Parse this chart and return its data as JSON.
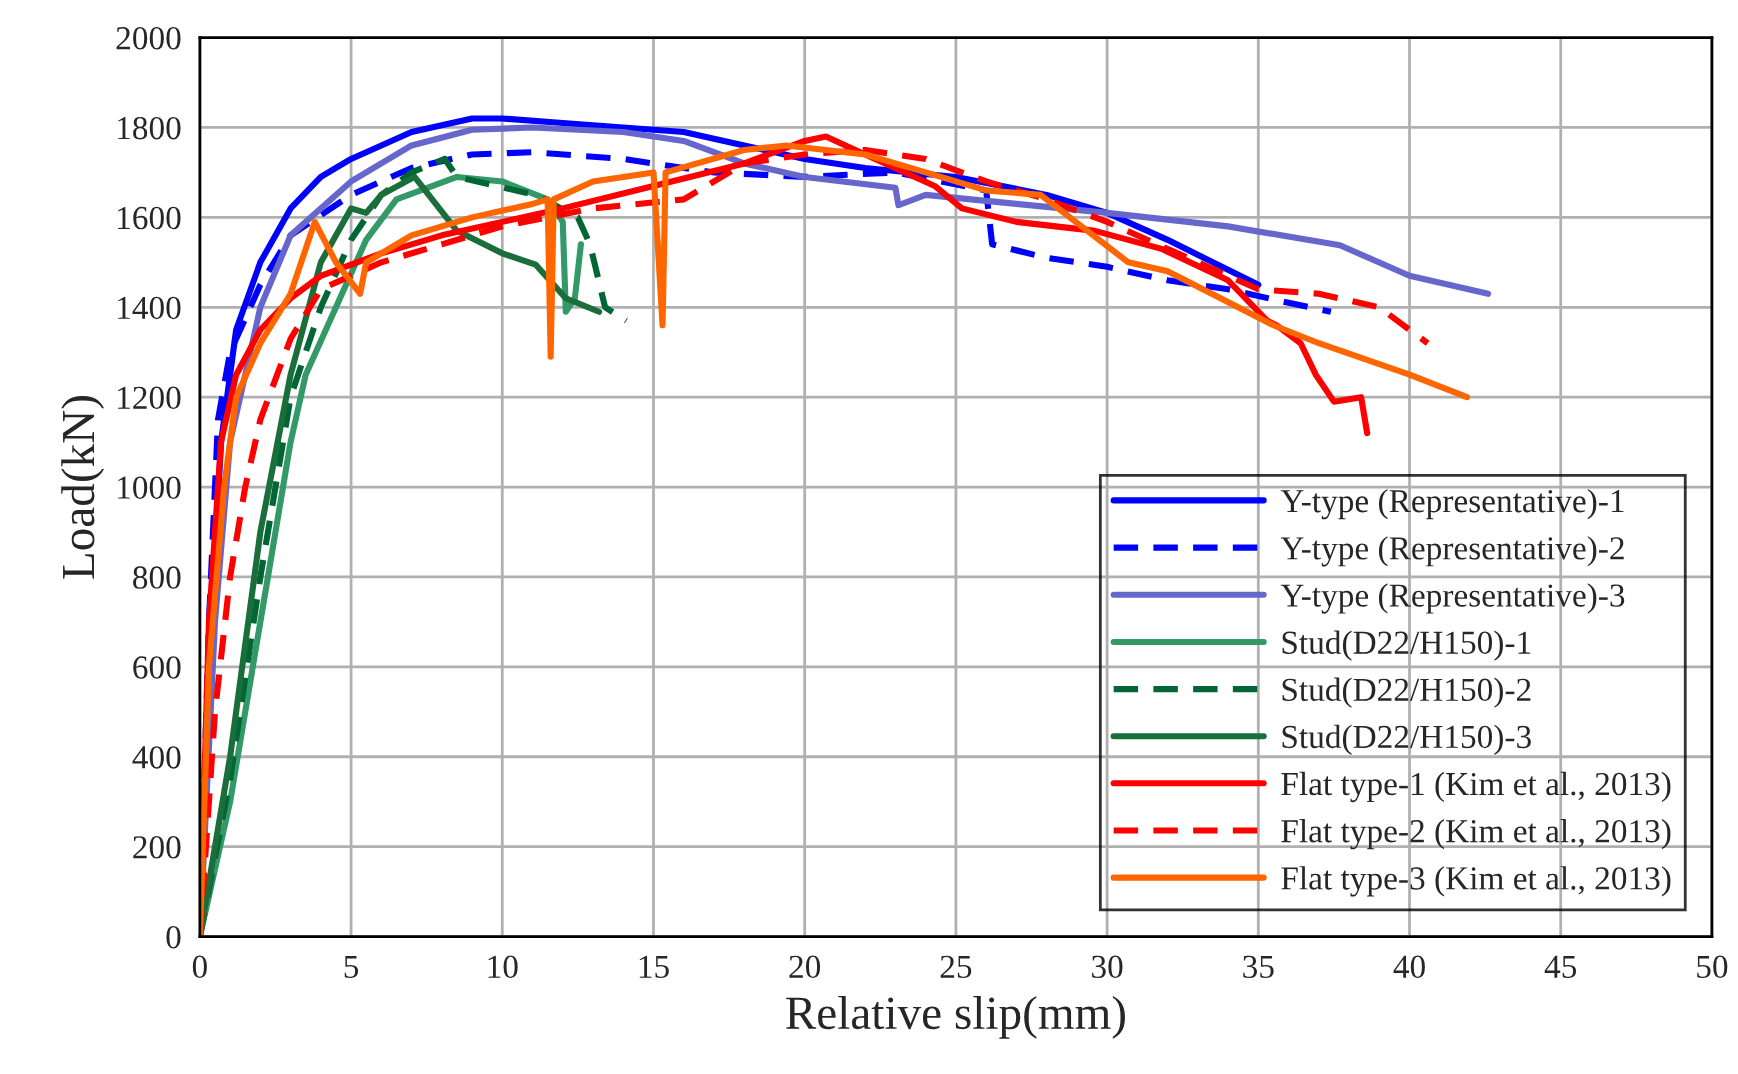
{
  "chart_data": {
    "type": "line",
    "xlabel": "Relative slip(mm)",
    "ylabel": "Load(kN)",
    "xlim": [
      0,
      50
    ],
    "xticks": [
      0,
      5,
      10,
      15,
      20,
      25,
      30,
      35,
      40,
      45,
      50
    ],
    "ylim": [
      0,
      2000
    ],
    "yticks": [
      0,
      200,
      400,
      600,
      800,
      1000,
      1200,
      1400,
      1600,
      1800,
      2000
    ],
    "grid": true,
    "legend": "bottom right",
    "marker": "none",
    "series": [
      {
        "name": "Y-type (Representative)-1",
        "color": "#0000ff",
        "line_style": "solid",
        "x": [
          0,
          0.3,
          0.7,
          1.2,
          2,
          3,
          4,
          5,
          7,
          9,
          10,
          12,
          14,
          16,
          18,
          20,
          22,
          25,
          28,
          30,
          32,
          35
        ],
        "values": [
          0,
          600,
          1100,
          1350,
          1500,
          1620,
          1690,
          1730,
          1790,
          1820,
          1820,
          1810,
          1800,
          1790,
          1760,
          1730,
          1710,
          1690,
          1650,
          1610,
          1550,
          1450
        ]
      },
      {
        "name": "Y-type (Representative)-2",
        "color": "#0000ff",
        "line_style": "dashed",
        "x": [
          0,
          0.3,
          0.6,
          1,
          2,
          3,
          5,
          7,
          9,
          11,
          14,
          17,
          20,
          23,
          26,
          26.2,
          28,
          30,
          32,
          34,
          36,
          37.4
        ],
        "values": [
          0,
          700,
          1150,
          1300,
          1450,
          1560,
          1650,
          1710,
          1740,
          1745,
          1730,
          1700,
          1690,
          1700,
          1660,
          1540,
          1510,
          1490,
          1460,
          1440,
          1410,
          1390
        ]
      },
      {
        "name": "Y-type (Representative)-3",
        "color": "#6666cc",
        "line_style": "solid",
        "x": [
          0,
          0.5,
          1,
          2,
          3,
          5,
          7,
          9,
          11,
          14,
          16,
          18,
          20,
          23,
          23.1,
          24,
          27,
          30,
          34,
          37.7,
          40,
          42.6
        ],
        "values": [
          0,
          700,
          1100,
          1400,
          1560,
          1680,
          1760,
          1795,
          1800,
          1790,
          1770,
          1720,
          1690,
          1666,
          1627,
          1650,
          1630,
          1610,
          1580,
          1538,
          1470,
          1430
        ]
      },
      {
        "name": "Stud(D22/H150)-1",
        "color": "#339966",
        "line_style": "solid",
        "x": [
          0,
          1,
          2,
          3,
          3.5,
          4.5,
          5.5,
          6.5,
          8.5,
          10,
          11.5,
          12,
          12.1,
          12.4,
          12.6
        ],
        "values": [
          0,
          300,
          700,
          1100,
          1250,
          1400,
          1550,
          1640,
          1690,
          1680,
          1640,
          1590,
          1390,
          1420,
          1540
        ]
      },
      {
        "name": "Stud(D22/H150)-2",
        "color": "#006633",
        "line_style": "dashed",
        "x": [
          0,
          1,
          2,
          3,
          4,
          5,
          6,
          7,
          8.1,
          8.5,
          11.1,
          12.5,
          12.9,
          13.4,
          14.1
        ],
        "values": [
          0,
          350,
          800,
          1200,
          1400,
          1550,
          1650,
          1700,
          1730,
          1690,
          1650,
          1600,
          1540,
          1400,
          1370
        ]
      },
      {
        "name": "Stud(D22/H150)-3",
        "color": "#1a6e3a",
        "line_style": "solid",
        "x": [
          0,
          1,
          2,
          3,
          4,
          5,
          5.5,
          6,
          7.1,
          8.5,
          10,
          11.1,
          12.1,
          13.2
        ],
        "values": [
          0,
          400,
          900,
          1250,
          1500,
          1620,
          1610,
          1650,
          1690,
          1570,
          1520,
          1495,
          1420,
          1390
        ]
      },
      {
        "name": "Flat type-1 (Kim et al., 2013)",
        "color": "#ff0000",
        "line_style": "solid",
        "x": [
          0,
          0.3,
          0.7,
          1.2,
          2,
          3,
          4,
          6,
          8,
          10,
          12,
          15,
          18,
          20,
          20.7,
          22,
          24.3,
          25.2,
          27,
          29.6,
          31.8,
          34,
          35.3,
          35.6,
          36.4,
          36.9,
          37.5,
          38.4,
          38.6
        ],
        "values": [
          0,
          700,
          1100,
          1250,
          1350,
          1420,
          1470,
          1520,
          1560,
          1590,
          1620,
          1670,
          1720,
          1770,
          1780,
          1740,
          1670,
          1620,
          1590,
          1570,
          1530,
          1460,
          1370,
          1360,
          1320,
          1250,
          1190,
          1200,
          1120
        ]
      },
      {
        "name": "Flat type-2 (Kim et al., 2013)",
        "color": "#ff0000",
        "line_style": "dashed",
        "x": [
          0,
          0.5,
          1,
          1.5,
          2,
          3,
          4,
          6,
          8,
          10,
          13,
          16,
          18,
          20,
          22,
          24,
          26,
          28,
          30,
          33,
          35,
          37,
          39,
          40.6
        ],
        "values": [
          0,
          500,
          800,
          1000,
          1150,
          1330,
          1440,
          1500,
          1540,
          1580,
          1620,
          1640,
          1720,
          1740,
          1750,
          1730,
          1680,
          1640,
          1590,
          1500,
          1440,
          1430,
          1400,
          1320
        ]
      },
      {
        "name": "Flat type-3 (Kim et al., 2013)",
        "color": "#ff6600",
        "line_style": "solid",
        "x": [
          0,
          0.3,
          0.8,
          1.2,
          2,
          3,
          3.8,
          4.5,
          5.3,
          5.5,
          7,
          9,
          11,
          11.5,
          11.6,
          11.7,
          13,
          15,
          15.3,
          15.4,
          18,
          19.4,
          22,
          24,
          26,
          27.8,
          30.7,
          32,
          35.5,
          37,
          40,
          41.9
        ],
        "values": [
          0,
          600,
          1000,
          1200,
          1320,
          1430,
          1590,
          1500,
          1430,
          1500,
          1560,
          1600,
          1630,
          1640,
          1290,
          1640,
          1680,
          1700,
          1360,
          1700,
          1750,
          1760,
          1740,
          1700,
          1660,
          1650,
          1500,
          1480,
          1360,
          1320,
          1250,
          1200
        ]
      }
    ]
  }
}
